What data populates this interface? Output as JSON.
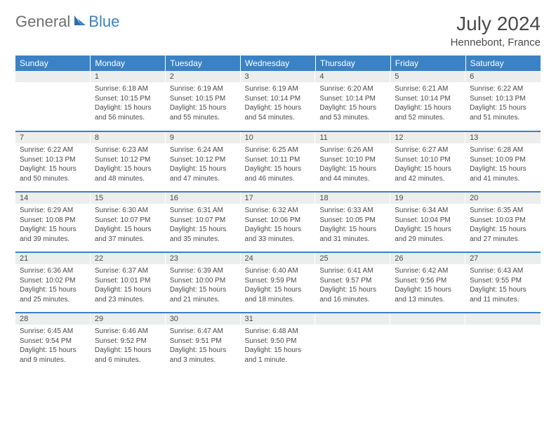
{
  "logo": {
    "word1": "General",
    "word2": "Blue"
  },
  "title": "July 2024",
  "location": "Hennebont, France",
  "colors": {
    "header_bg": "#3b82c4",
    "header_text": "#ffffff",
    "daynum_bg": "#eceded",
    "text": "#4a4a4a",
    "row_divider": "#3b82c4",
    "logo_gray": "#6d6e71",
    "logo_blue": "#3b82c4"
  },
  "fonts": {
    "title_size": 28,
    "location_size": 15,
    "dayhead_size": 12,
    "daynum_size": 11,
    "body_size": 10
  },
  "day_headers": [
    "Sunday",
    "Monday",
    "Tuesday",
    "Wednesday",
    "Thursday",
    "Friday",
    "Saturday"
  ],
  "weeks": [
    [
      {
        "num": "",
        "lines": []
      },
      {
        "num": "1",
        "lines": [
          "Sunrise: 6:18 AM",
          "Sunset: 10:15 PM",
          "Daylight: 15 hours",
          "and 56 minutes."
        ]
      },
      {
        "num": "2",
        "lines": [
          "Sunrise: 6:19 AM",
          "Sunset: 10:15 PM",
          "Daylight: 15 hours",
          "and 55 minutes."
        ]
      },
      {
        "num": "3",
        "lines": [
          "Sunrise: 6:19 AM",
          "Sunset: 10:14 PM",
          "Daylight: 15 hours",
          "and 54 minutes."
        ]
      },
      {
        "num": "4",
        "lines": [
          "Sunrise: 6:20 AM",
          "Sunset: 10:14 PM",
          "Daylight: 15 hours",
          "and 53 minutes."
        ]
      },
      {
        "num": "5",
        "lines": [
          "Sunrise: 6:21 AM",
          "Sunset: 10:14 PM",
          "Daylight: 15 hours",
          "and 52 minutes."
        ]
      },
      {
        "num": "6",
        "lines": [
          "Sunrise: 6:22 AM",
          "Sunset: 10:13 PM",
          "Daylight: 15 hours",
          "and 51 minutes."
        ]
      }
    ],
    [
      {
        "num": "7",
        "lines": [
          "Sunrise: 6:22 AM",
          "Sunset: 10:13 PM",
          "Daylight: 15 hours",
          "and 50 minutes."
        ]
      },
      {
        "num": "8",
        "lines": [
          "Sunrise: 6:23 AM",
          "Sunset: 10:12 PM",
          "Daylight: 15 hours",
          "and 48 minutes."
        ]
      },
      {
        "num": "9",
        "lines": [
          "Sunrise: 6:24 AM",
          "Sunset: 10:12 PM",
          "Daylight: 15 hours",
          "and 47 minutes."
        ]
      },
      {
        "num": "10",
        "lines": [
          "Sunrise: 6:25 AM",
          "Sunset: 10:11 PM",
          "Daylight: 15 hours",
          "and 46 minutes."
        ]
      },
      {
        "num": "11",
        "lines": [
          "Sunrise: 6:26 AM",
          "Sunset: 10:10 PM",
          "Daylight: 15 hours",
          "and 44 minutes."
        ]
      },
      {
        "num": "12",
        "lines": [
          "Sunrise: 6:27 AM",
          "Sunset: 10:10 PM",
          "Daylight: 15 hours",
          "and 42 minutes."
        ]
      },
      {
        "num": "13",
        "lines": [
          "Sunrise: 6:28 AM",
          "Sunset: 10:09 PM",
          "Daylight: 15 hours",
          "and 41 minutes."
        ]
      }
    ],
    [
      {
        "num": "14",
        "lines": [
          "Sunrise: 6:29 AM",
          "Sunset: 10:08 PM",
          "Daylight: 15 hours",
          "and 39 minutes."
        ]
      },
      {
        "num": "15",
        "lines": [
          "Sunrise: 6:30 AM",
          "Sunset: 10:07 PM",
          "Daylight: 15 hours",
          "and 37 minutes."
        ]
      },
      {
        "num": "16",
        "lines": [
          "Sunrise: 6:31 AM",
          "Sunset: 10:07 PM",
          "Daylight: 15 hours",
          "and 35 minutes."
        ]
      },
      {
        "num": "17",
        "lines": [
          "Sunrise: 6:32 AM",
          "Sunset: 10:06 PM",
          "Daylight: 15 hours",
          "and 33 minutes."
        ]
      },
      {
        "num": "18",
        "lines": [
          "Sunrise: 6:33 AM",
          "Sunset: 10:05 PM",
          "Daylight: 15 hours",
          "and 31 minutes."
        ]
      },
      {
        "num": "19",
        "lines": [
          "Sunrise: 6:34 AM",
          "Sunset: 10:04 PM",
          "Daylight: 15 hours",
          "and 29 minutes."
        ]
      },
      {
        "num": "20",
        "lines": [
          "Sunrise: 6:35 AM",
          "Sunset: 10:03 PM",
          "Daylight: 15 hours",
          "and 27 minutes."
        ]
      }
    ],
    [
      {
        "num": "21",
        "lines": [
          "Sunrise: 6:36 AM",
          "Sunset: 10:02 PM",
          "Daylight: 15 hours",
          "and 25 minutes."
        ]
      },
      {
        "num": "22",
        "lines": [
          "Sunrise: 6:37 AM",
          "Sunset: 10:01 PM",
          "Daylight: 15 hours",
          "and 23 minutes."
        ]
      },
      {
        "num": "23",
        "lines": [
          "Sunrise: 6:39 AM",
          "Sunset: 10:00 PM",
          "Daylight: 15 hours",
          "and 21 minutes."
        ]
      },
      {
        "num": "24",
        "lines": [
          "Sunrise: 6:40 AM",
          "Sunset: 9:59 PM",
          "Daylight: 15 hours",
          "and 18 minutes."
        ]
      },
      {
        "num": "25",
        "lines": [
          "Sunrise: 6:41 AM",
          "Sunset: 9:57 PM",
          "Daylight: 15 hours",
          "and 16 minutes."
        ]
      },
      {
        "num": "26",
        "lines": [
          "Sunrise: 6:42 AM",
          "Sunset: 9:56 PM",
          "Daylight: 15 hours",
          "and 13 minutes."
        ]
      },
      {
        "num": "27",
        "lines": [
          "Sunrise: 6:43 AM",
          "Sunset: 9:55 PM",
          "Daylight: 15 hours",
          "and 11 minutes."
        ]
      }
    ],
    [
      {
        "num": "28",
        "lines": [
          "Sunrise: 6:45 AM",
          "Sunset: 9:54 PM",
          "Daylight: 15 hours",
          "and 9 minutes."
        ]
      },
      {
        "num": "29",
        "lines": [
          "Sunrise: 6:46 AM",
          "Sunset: 9:52 PM",
          "Daylight: 15 hours",
          "and 6 minutes."
        ]
      },
      {
        "num": "30",
        "lines": [
          "Sunrise: 6:47 AM",
          "Sunset: 9:51 PM",
          "Daylight: 15 hours",
          "and 3 minutes."
        ]
      },
      {
        "num": "31",
        "lines": [
          "Sunrise: 6:48 AM",
          "Sunset: 9:50 PM",
          "Daylight: 15 hours",
          "and 1 minute."
        ]
      },
      {
        "num": "",
        "lines": []
      },
      {
        "num": "",
        "lines": []
      },
      {
        "num": "",
        "lines": []
      }
    ]
  ]
}
